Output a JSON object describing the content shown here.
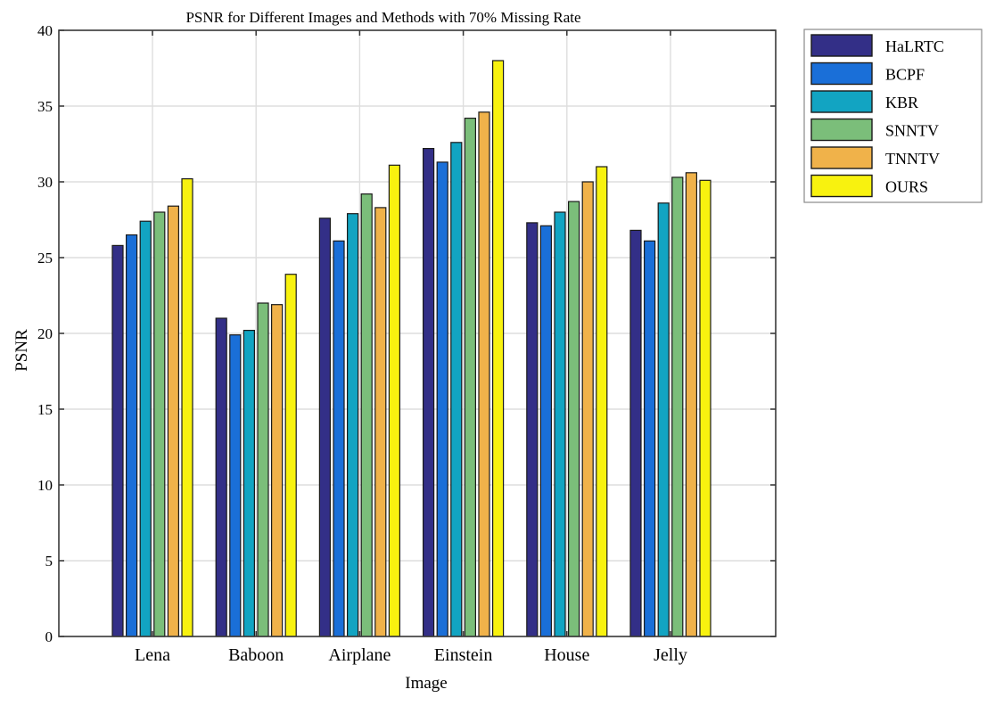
{
  "chart_data": {
    "type": "bar",
    "title": "PSNR for Different Images and Methods with 70% Missing Rate",
    "xlabel": "Image",
    "ylabel": "PSNR",
    "ylim": [
      0,
      40
    ],
    "yticks": [
      "0",
      "5",
      "10",
      "15",
      "20",
      "25",
      "30",
      "35",
      "40"
    ],
    "grid": true,
    "legend_position": "outside-right",
    "categories": [
      "Lena",
      "Baboon",
      "Airplane",
      "Einstein",
      "House",
      "Jelly"
    ],
    "series": [
      {
        "name": "HaLRTC",
        "color": "#332f87",
        "values": [
          25.8,
          21.0,
          27.6,
          32.2,
          27.3,
          26.8
        ]
      },
      {
        "name": "BCPF",
        "color": "#1a6fd8",
        "values": [
          26.5,
          19.9,
          26.1,
          31.3,
          27.1,
          26.1
        ]
      },
      {
        "name": "KBR",
        "color": "#12a4c2",
        "values": [
          27.4,
          20.2,
          27.9,
          32.6,
          28.0,
          28.6
        ]
      },
      {
        "name": "SNNTV",
        "color": "#7bbe7a",
        "values": [
          28.0,
          22.0,
          29.2,
          34.2,
          28.7,
          30.3
        ]
      },
      {
        "name": "TNNTV",
        "color": "#f0b24a",
        "values": [
          28.4,
          21.9,
          28.3,
          34.6,
          30.0,
          30.6
        ]
      },
      {
        "name": "OURS",
        "color": "#f8f20f",
        "values": [
          30.2,
          23.9,
          31.1,
          38.0,
          31.0,
          30.1
        ]
      }
    ]
  }
}
